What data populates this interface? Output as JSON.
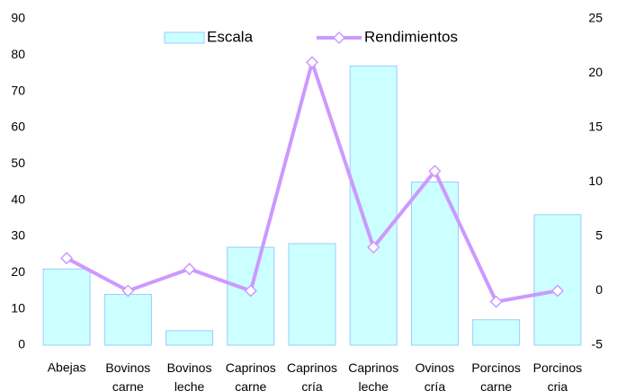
{
  "chart_data": {
    "type": "bar_line",
    "categories": [
      "Abejas",
      "Bovinos carne",
      "Bovinos leche",
      "Caprinos carne",
      "Caprinos cría",
      "Caprinos leche",
      "Ovinos cría",
      "Porcinos carne",
      "Porcinos cria"
    ],
    "series": [
      {
        "name": "Escala",
        "type": "bar",
        "color": "#ccffff",
        "edge": "#99ccff",
        "values": [
          21,
          14,
          4,
          27,
          28,
          77,
          45,
          7,
          36
        ]
      },
      {
        "name": "Rendimientos",
        "type": "line",
        "axis": "y2",
        "color": "#cc99ff",
        "values": [
          3,
          0,
          2,
          0,
          21,
          4,
          11,
          -1,
          0
        ]
      }
    ],
    "ylim": [
      0,
      90
    ],
    "yticks": [
      0,
      10,
      20,
      30,
      40,
      50,
      60,
      70,
      80,
      90
    ],
    "y2lim": [
      -5,
      25
    ],
    "y2ticks": [
      -5,
      0,
      5,
      10,
      15,
      20,
      25
    ],
    "grid": false
  }
}
